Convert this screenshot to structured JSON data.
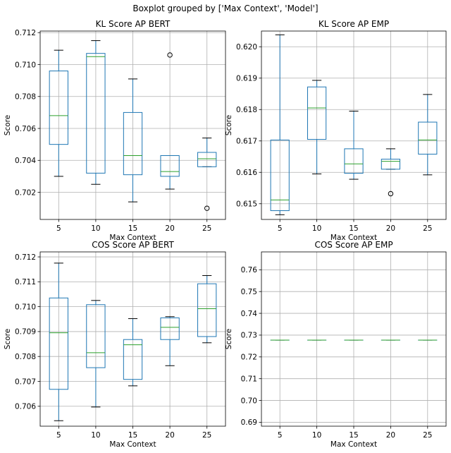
{
  "figure": {
    "suptitle": "Boxplot grouped by ['Max Context', 'Model']"
  },
  "colors": {
    "box": "#1f77b4",
    "median": "#2ca02c",
    "whisker": "#000000",
    "grid": "#b0b0b0"
  },
  "chart_data": [
    {
      "type": "box",
      "title": "KL Score AP BERT",
      "xlabel": "Max Context",
      "ylabel": "Score",
      "categories": [
        "5",
        "10",
        "15",
        "20",
        "25"
      ],
      "ylim": [
        0.7003,
        0.7121
      ],
      "yticks": [
        "0.702",
        "0.704",
        "0.706",
        "0.708",
        "0.710",
        "0.712"
      ],
      "grid": true,
      "boxes": [
        {
          "whislo": 0.703,
          "q1": 0.705,
          "med": 0.7068,
          "q3": 0.7096,
          "whishi": 0.7109,
          "fliers": []
        },
        {
          "whislo": 0.7025,
          "q1": 0.7032,
          "med": 0.7105,
          "q3": 0.7107,
          "whishi": 0.7115,
          "fliers": []
        },
        {
          "whislo": 0.7014,
          "q1": 0.7031,
          "med": 0.7043,
          "q3": 0.707,
          "whishi": 0.7091,
          "fliers": []
        },
        {
          "whislo": 0.7022,
          "q1": 0.703,
          "med": 0.7033,
          "q3": 0.7043,
          "whishi": 0.7043,
          "fliers": [
            0.7106
          ]
        },
        {
          "whislo": 0.7036,
          "q1": 0.7036,
          "med": 0.7041,
          "q3": 0.7045,
          "whishi": 0.7054,
          "fliers": [
            0.701
          ]
        }
      ]
    },
    {
      "type": "box",
      "title": "KL Score AP EMP",
      "xlabel": "Max Context",
      "ylabel": "Score",
      "categories": [
        "5",
        "10",
        "15",
        "20",
        "25"
      ],
      "ylim": [
        0.6145,
        0.6205
      ],
      "yticks": [
        "0.615",
        "0.616",
        "0.617",
        "0.618",
        "0.619",
        "0.620"
      ],
      "grid": true,
      "boxes": [
        {
          "whislo": 0.61465,
          "q1": 0.61478,
          "med": 0.61512,
          "q3": 0.61703,
          "whishi": 0.62038,
          "fliers": []
        },
        {
          "whislo": 0.61595,
          "q1": 0.61705,
          "med": 0.61805,
          "q3": 0.61872,
          "whishi": 0.61893,
          "fliers": []
        },
        {
          "whislo": 0.61578,
          "q1": 0.61597,
          "med": 0.61627,
          "q3": 0.61675,
          "whishi": 0.61795,
          "fliers": []
        },
        {
          "whislo": 0.6161,
          "q1": 0.6161,
          "med": 0.61635,
          "q3": 0.61642,
          "whishi": 0.61675,
          "fliers": [
            0.61532
          ]
        },
        {
          "whislo": 0.61592,
          "q1": 0.61658,
          "med": 0.61703,
          "q3": 0.6176,
          "whishi": 0.61848,
          "fliers": []
        }
      ]
    },
    {
      "type": "box",
      "title": "COS Score AP BERT",
      "xlabel": "Max Context",
      "ylabel": "Score",
      "categories": [
        "5",
        "10",
        "15",
        "20",
        "25"
      ],
      "ylim": [
        0.7052,
        0.7122
      ],
      "yticks": [
        "0.706",
        "0.707",
        "0.708",
        "0.709",
        "0.710",
        "0.711",
        "0.712"
      ],
      "grid": true,
      "boxes": [
        {
          "whislo": 0.70542,
          "q1": 0.70668,
          "med": 0.70895,
          "q3": 0.71035,
          "whishi": 0.71175,
          "fliers": []
        },
        {
          "whislo": 0.70597,
          "q1": 0.70755,
          "med": 0.70815,
          "q3": 0.71008,
          "whishi": 0.71025,
          "fliers": []
        },
        {
          "whislo": 0.70682,
          "q1": 0.70708,
          "med": 0.70847,
          "q3": 0.70868,
          "whishi": 0.70952,
          "fliers": []
        },
        {
          "whislo": 0.70763,
          "q1": 0.70868,
          "med": 0.70917,
          "q3": 0.70955,
          "whishi": 0.7096,
          "fliers": []
        },
        {
          "whislo": 0.70855,
          "q1": 0.7088,
          "med": 0.70992,
          "q3": 0.71092,
          "whishi": 0.71125,
          "fliers": []
        }
      ]
    },
    {
      "type": "box",
      "title": "COS Score AP EMP",
      "xlabel": "Max Context",
      "ylabel": "Score",
      "categories": [
        "5",
        "10",
        "15",
        "20",
        "25"
      ],
      "ylim": [
        0.6882,
        0.7682
      ],
      "yticks": [
        "0.69",
        "0.70",
        "0.71",
        "0.72",
        "0.73",
        "0.74",
        "0.75",
        "0.76"
      ],
      "grid": true,
      "boxes": [
        {
          "whislo": 0.7277,
          "q1": 0.7277,
          "med": 0.7277,
          "q3": 0.7277,
          "whishi": 0.7277,
          "fliers": []
        },
        {
          "whislo": 0.7277,
          "q1": 0.7277,
          "med": 0.7277,
          "q3": 0.7277,
          "whishi": 0.7277,
          "fliers": []
        },
        {
          "whislo": 0.7277,
          "q1": 0.7277,
          "med": 0.7277,
          "q3": 0.7277,
          "whishi": 0.7277,
          "fliers": []
        },
        {
          "whislo": 0.7277,
          "q1": 0.7277,
          "med": 0.7277,
          "q3": 0.7277,
          "whishi": 0.7277,
          "fliers": []
        },
        {
          "whislo": 0.7277,
          "q1": 0.7277,
          "med": 0.7277,
          "q3": 0.7277,
          "whishi": 0.7277,
          "fliers": []
        }
      ]
    }
  ]
}
